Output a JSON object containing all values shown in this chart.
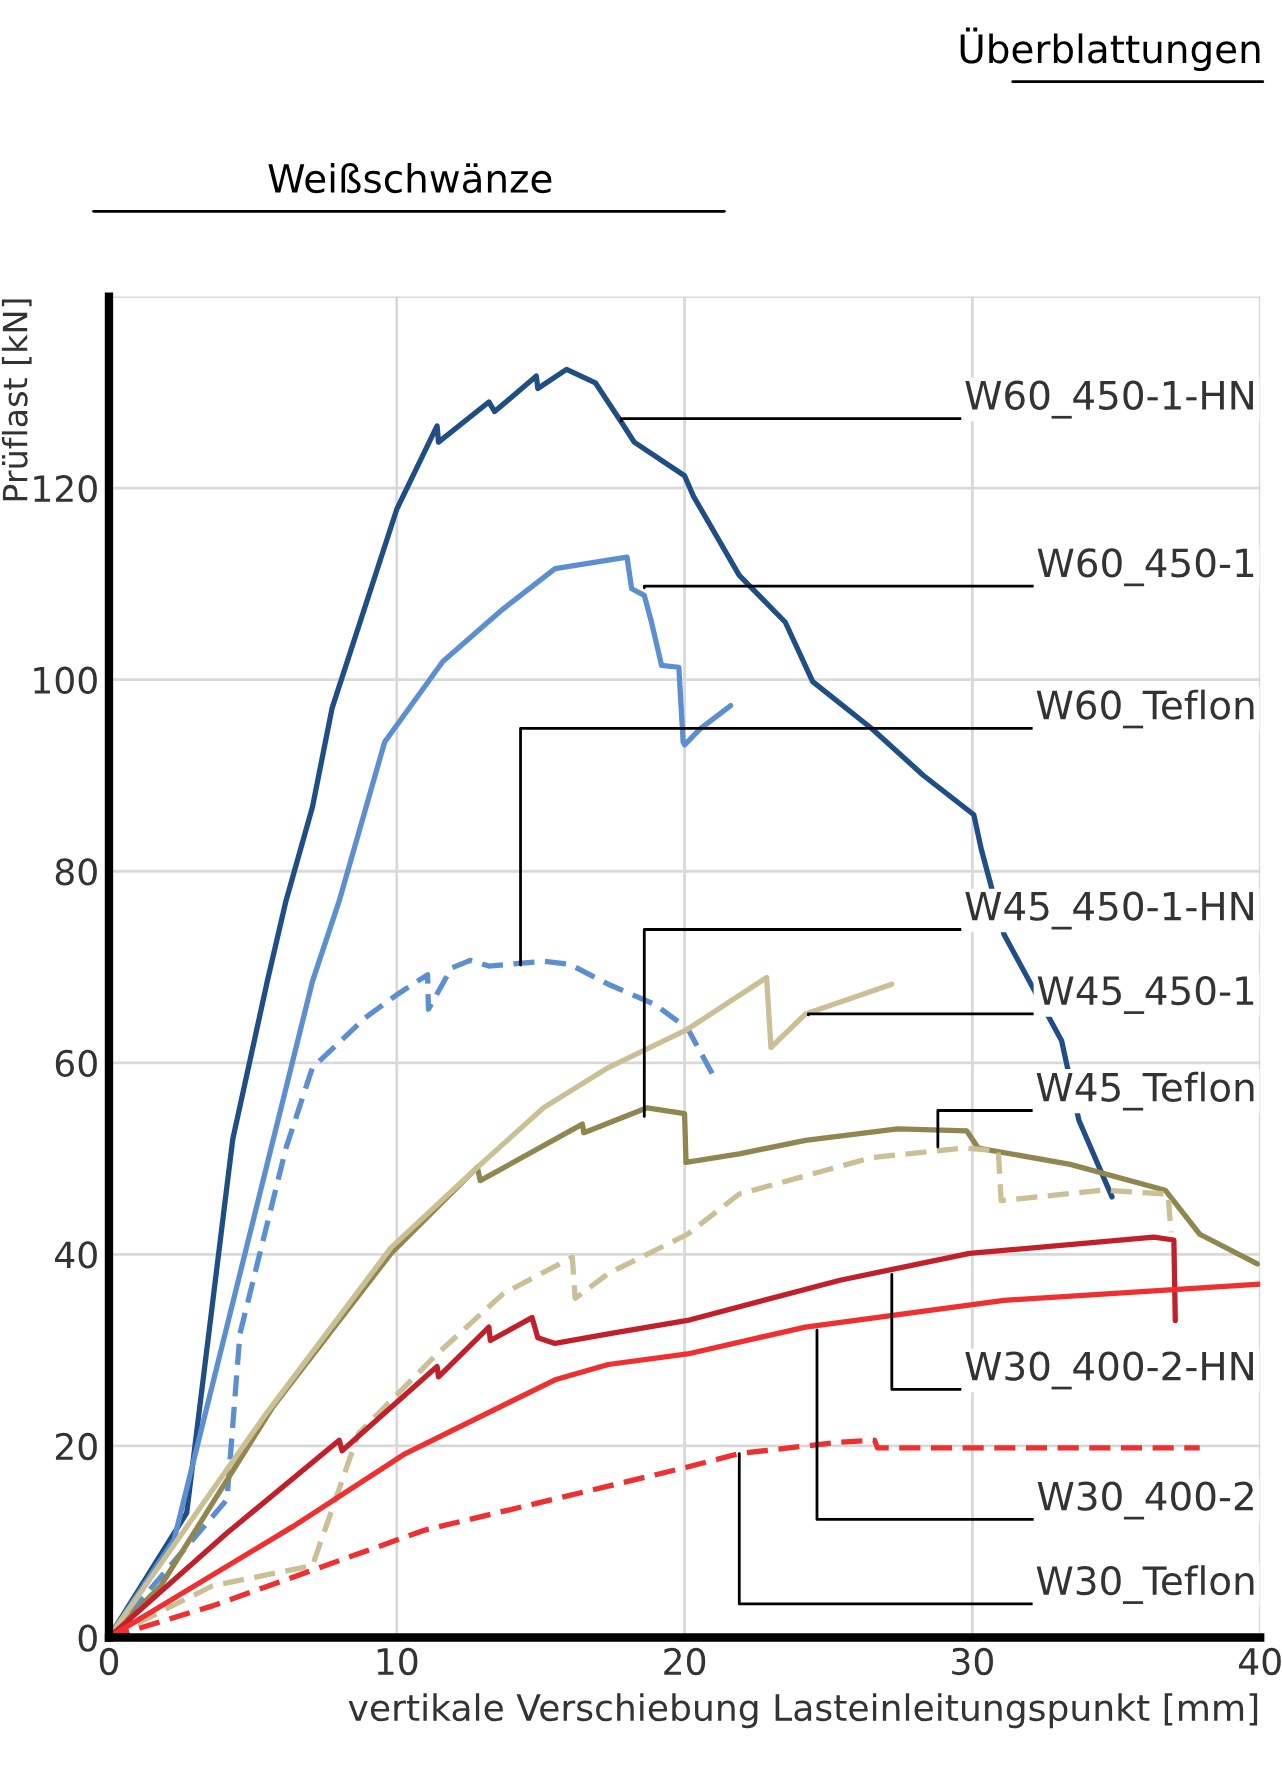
{
  "chart_data": {
    "type": "line",
    "xlabel": "vertikale Verschiebung Lasteinleitungspunkt [mm]",
    "ylabel": "Prüflast [kN]",
    "xlim": [
      0,
      40
    ],
    "xticks": [
      0,
      10,
      20,
      30,
      40
    ],
    "ylim": [
      0,
      140
    ],
    "yticks": [
      0,
      20,
      40,
      60,
      80,
      100,
      120,
      {
        "value": 140,
        "label": null
      }
    ],
    "grid": true,
    "series": [
      {
        "color": "#1f4e85",
        "line_style": "solid",
        "x": [
          0,
          2.7,
          4.3,
          5.5,
          6.15,
          7.07,
          7.75,
          10.0,
          11.4,
          11.45,
          13.2,
          13.4,
          14.85,
          14.9,
          15.9,
          16.9,
          17.8,
          18.25,
          20.0,
          20.3,
          21.9,
          23.5,
          24.45,
          26.5,
          28.3,
          30.05,
          30.3,
          31.1,
          33.1,
          33.7,
          34.85
        ],
        "values": [
          0,
          13,
          52,
          68.5,
          76.9,
          86.7,
          97,
          117.8,
          126.5,
          124.8,
          129,
          128,
          131.7,
          130.4,
          132.4,
          131,
          126.9,
          124.8,
          121.3,
          119.2,
          110.9,
          106,
          99.8,
          94.9,
          90,
          85.9,
          82.4,
          73.4,
          62.3,
          54,
          46
        ]
      },
      {
        "color": "#5b8fd0",
        "line_style": "solid",
        "x": [
          0,
          2.26,
          5.47,
          7.07,
          8.0,
          9.58,
          11.6,
          13.7,
          15.5,
          18.0,
          18.16,
          18.6,
          18.85,
          19.2,
          19.8,
          19.95,
          20.0,
          20.55,
          21.6
        ],
        "values": [
          0,
          10.2,
          49.1,
          68.5,
          76.9,
          93.5,
          101.9,
          107.4,
          111.6,
          112.8,
          109.5,
          108.8,
          106,
          101.5,
          101.3,
          93.5,
          93.2,
          94.9,
          97.3
        ]
      },
      {
        "color": "#5b8fd0",
        "line_style": "dashed",
        "x": [
          0,
          4.1,
          4.55,
          6.15,
          7.07,
          8.9,
          10.0,
          11.07,
          11.1,
          11.9,
          12.55,
          13.2,
          15.1,
          16.0,
          17.35,
          18.96,
          20.1,
          21.1
        ],
        "values": [
          0,
          14.4,
          31.7,
          51.1,
          59.5,
          64.7,
          67.1,
          69.2,
          65.6,
          69.9,
          70.7,
          70.1,
          70.6,
          70.3,
          68.2,
          66.1,
          63.6,
          58.1
        ]
      },
      {
        "color": "#8f8650",
        "line_style": "solid",
        "x": [
          0,
          1.8,
          5.7,
          9.8,
          12.8,
          12.9,
          16.45,
          16.5,
          18.7,
          20.0,
          20.05,
          21.9,
          24.2,
          27.4,
          29.8,
          30.2,
          33.4,
          36.7,
          37.9,
          39.9
        ],
        "values": [
          0,
          5.4,
          24.1,
          40.1,
          49.1,
          47.7,
          53.6,
          52.7,
          55.3,
          54.7,
          49.6,
          50.5,
          51.9,
          53.1,
          52.9,
          51.1,
          49.4,
          46.7,
          42.1,
          39
        ]
      },
      {
        "color": "#cbbf96",
        "line_style": "solid",
        "x": [
          0,
          5.47,
          9.8,
          12.8,
          15.1,
          17.35,
          20.1,
          22.85,
          23.0,
          24.2,
          27.2
        ],
        "values": [
          0,
          23.4,
          40.7,
          49.1,
          55.3,
          59.5,
          63.5,
          68.9,
          61.6,
          65.1,
          68.2
        ]
      },
      {
        "color": "#cbbf96",
        "line_style": "dashed",
        "x": [
          0,
          3.6,
          7.07,
          8.67,
          11.4,
          13.7,
          16.1,
          16.2,
          17.35,
          20.1,
          21.9,
          26.5,
          29.7,
          30.9,
          31.0,
          34.5,
          36.8,
          36.9
        ],
        "values": [
          0,
          5.4,
          7.5,
          21.3,
          29.6,
          35.9,
          39.7,
          35.4,
          38,
          42.1,
          46.3,
          50.1,
          51.1,
          50.8,
          45.6,
          46.7,
          46.3,
          42.3
        ]
      },
      {
        "color": "#c0202a",
        "line_style": "solid",
        "x": [
          0,
          4.1,
          8.0,
          8.1,
          11.4,
          11.45,
          13.2,
          13.25,
          14.7,
          14.9,
          15.5,
          17.35,
          20.1,
          25.4,
          29.9,
          36.3,
          37.0,
          37.05
        ],
        "values": [
          0,
          10.9,
          20.6,
          19.5,
          28.3,
          27.2,
          32.4,
          31.0,
          33.4,
          31.3,
          30.7,
          31.7,
          33.1,
          37.3,
          40.1,
          41.8,
          41.5,
          33.1
        ]
      },
      {
        "color": "#ee3030",
        "line_style": "solid",
        "x": [
          0,
          6.4,
          10.3,
          15.5,
          17.35,
          20.1,
          24.2,
          31.1,
          40
        ],
        "values": [
          0,
          11.6,
          19.2,
          26.9,
          28.5,
          29.6,
          32.4,
          35.2,
          36.9
        ]
      },
      {
        "color": "#ee3030",
        "line_style": "dashed",
        "x": [
          0,
          3.6,
          10.96,
          14.85,
          17.35,
          20.1,
          21.9,
          25.4,
          26.6,
          26.7,
          31.1,
          37.9
        ],
        "values": [
          0,
          3.3,
          11.2,
          14.0,
          15.8,
          17.8,
          19.2,
          20.4,
          20.6,
          19.8,
          19.8,
          19.8
        ]
      }
    ],
    "annotations": [
      "Überblattungen",
      "Weißschwänze",
      {
        "text": "W60_450-1-HN",
        "x": 17.8,
        "y": 127
      },
      {
        "text": "W60_450-1",
        "x": 18.6,
        "y": 109.6
      },
      {
        "text": "W60_Teflon",
        "x": 14.3,
        "y": 70.2
      },
      {
        "text": "W45_450-1-HN",
        "x": 18.6,
        "y": 54.4
      },
      {
        "text": "W45_450-1",
        "x": 24.3,
        "y": 65
      },
      {
        "text": "W45_Teflon",
        "x": 28.8,
        "y": 51.2
      },
      {
        "text": "W30_400-2-HN",
        "x": 27.2,
        "y": 37.9
      },
      {
        "text": "W30_400-2",
        "x": 24.6,
        "y": 32.1
      },
      {
        "text": "W30_Teflon",
        "x": 21.9,
        "y": 19.2
      }
    ]
  }
}
